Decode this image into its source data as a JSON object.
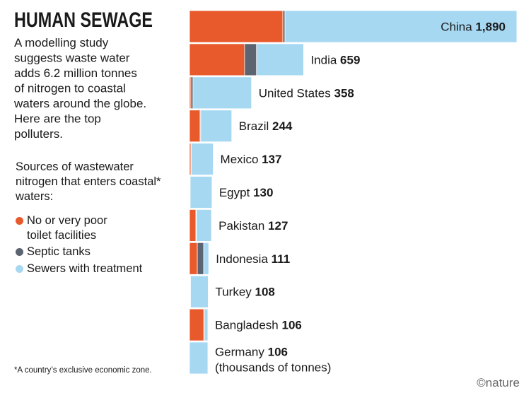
{
  "chart_data": {
    "type": "stacked-bar-horizontal",
    "title": "HUMAN SEWAGE",
    "intro_lines": [
      "A modelling study",
      "suggests waste water",
      "adds 6.2 million tonnes",
      "of nitrogen to coastal",
      "waters around the globe.",
      "Here are the top",
      "polluters."
    ],
    "legend_title": "Sources of wastewater nitrogen that enters coastal* waters:",
    "footnote": "*A country’s exclusive economic zone.",
    "credit": "©nature",
    "unit_note": "(thousands of tonnes)",
    "categories": [
      "China",
      "India",
      "United States",
      "Brazil",
      "Mexico",
      "Egypt",
      "Pakistan",
      "Indonesia",
      "Turkey",
      "Bangladesh",
      "Germany"
    ],
    "totals": [
      1890,
      659,
      358,
      244,
      137,
      130,
      127,
      111,
      108,
      106,
      106
    ],
    "value_labels": [
      "1,890",
      "659",
      "358",
      "244",
      "137",
      "130",
      "127",
      "111",
      "108",
      "106",
      "106"
    ],
    "series": [
      {
        "name": "No or very poor toilet facilities",
        "color": "#e8592b",
        "values": [
          539,
          318,
          8,
          61,
          8,
          3,
          37,
          45,
          3,
          82,
          0
        ]
      },
      {
        "name": "Septic tanks",
        "color": "#5b6470",
        "values": [
          12,
          69,
          12,
          4,
          2,
          1,
          3,
          37,
          3,
          6,
          0
        ]
      },
      {
        "name": "Sewers with treatment",
        "color": "#a6d8f2",
        "values": [
          1339,
          272,
          338,
          179,
          127,
          126,
          87,
          29,
          102,
          18,
          106
        ]
      }
    ]
  }
}
